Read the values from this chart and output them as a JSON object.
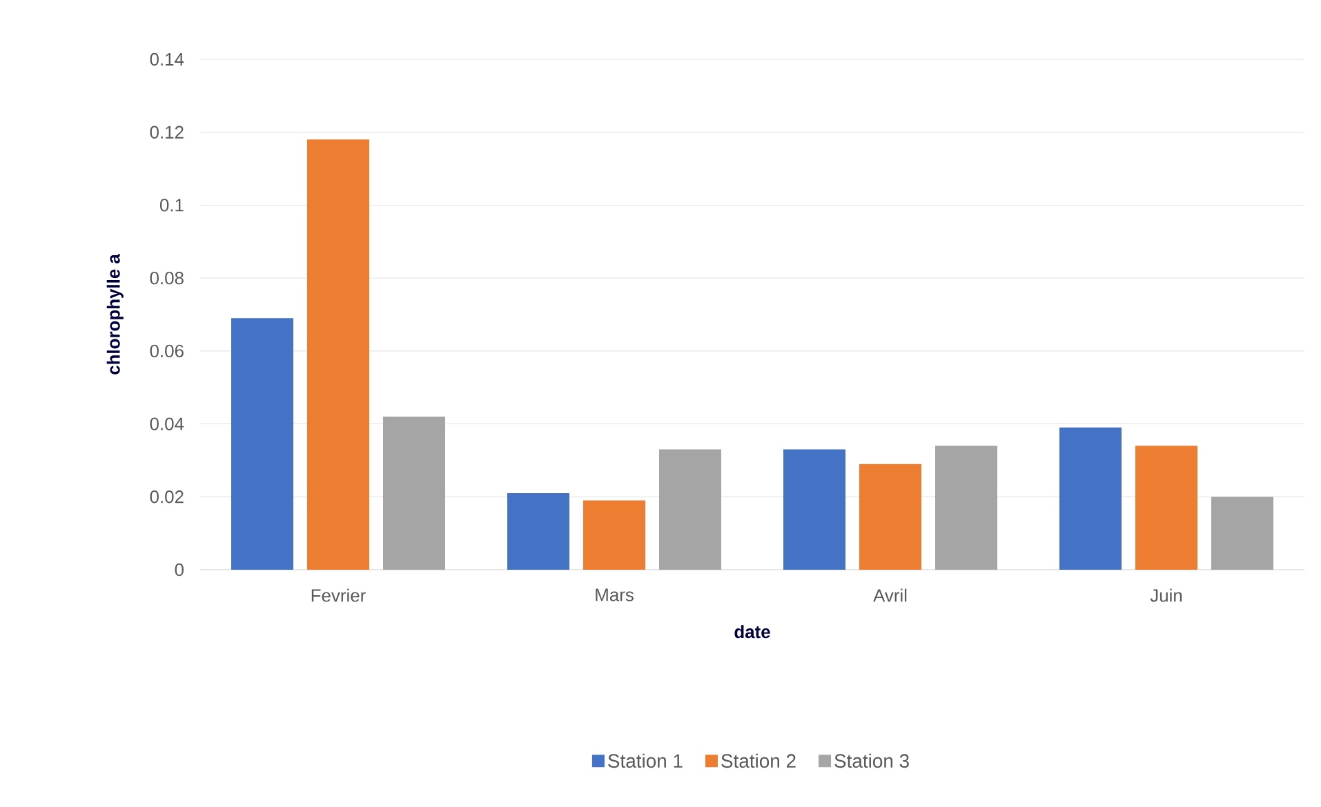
{
  "chart_data": {
    "type": "bar",
    "xlabel": "date",
    "ylabel": "chlorophylle a",
    "categories": [
      "Fevrier",
      "Mars",
      "Avril",
      "Juin"
    ],
    "series": [
      {
        "name": "Station 1",
        "color": "#4472c4",
        "values": [
          0.069,
          0.021,
          0.033,
          0.039
        ]
      },
      {
        "name": "Station 2",
        "color": "#ed7d31",
        "values": [
          0.118,
          0.019,
          0.029,
          0.034
        ]
      },
      {
        "name": "Station 3",
        "color": "#a5a5a5",
        "values": [
          0.042,
          0.033,
          0.034,
          0.02
        ]
      }
    ],
    "ylim": [
      0,
      0.14
    ],
    "yticks": [
      0,
      0.02,
      0.04,
      0.06,
      0.08,
      0.1,
      0.12,
      0.14
    ],
    "grid": "y",
    "legend": "bottom"
  }
}
